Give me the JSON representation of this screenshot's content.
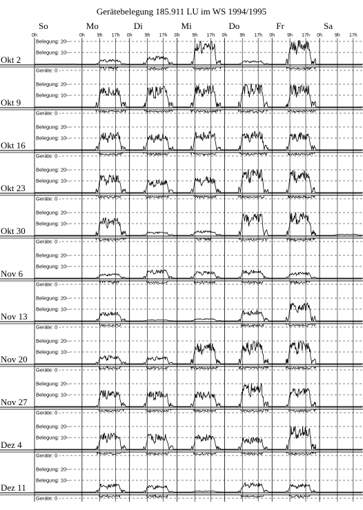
{
  "chart_data": {
    "type": "line",
    "title": "Gerätebelegung 185.911 LU im WS 1994/1995",
    "days": [
      "So",
      "Mo",
      "Di",
      "Mi",
      "Do",
      "Fr",
      "Sa"
    ],
    "hour_ticks": [
      "0h",
      "9h",
      "17h"
    ],
    "panel_labels": {
      "geraete": "Geräte: 0",
      "belegung_20": "Belegung: 20",
      "belegung_10": "Belegung: 10"
    },
    "weeks": [
      {
        "label": "Okt 2",
        "peaks": [
          0.5,
          4,
          7,
          20,
          3,
          21,
          0
        ]
      },
      {
        "label": "Okt 9",
        "peaks": [
          0,
          17,
          18,
          19,
          20,
          19,
          0
        ]
      },
      {
        "label": "Okt 16",
        "peaks": [
          0,
          15,
          14,
          16,
          16,
          15,
          0
        ]
      },
      {
        "label": "Okt 23",
        "peaks": [
          0,
          15,
          11,
          14,
          20,
          19,
          0
        ]
      },
      {
        "label": "Okt 30",
        "peaks": [
          0,
          15,
          3,
          4,
          19,
          20,
          1
        ]
      },
      {
        "label": "Nov 6",
        "peaks": [
          0,
          4,
          7,
          6,
          7,
          5,
          0
        ]
      },
      {
        "label": "Nov 13",
        "peaks": [
          0,
          8,
          1,
          2,
          9,
          16,
          0
        ]
      },
      {
        "label": "Nov 20",
        "peaks": [
          0,
          7,
          6,
          18,
          19,
          20,
          0
        ]
      },
      {
        "label": "Nov 27",
        "peaks": [
          0,
          14,
          13,
          13,
          20,
          16,
          0
        ]
      },
      {
        "label": "Dez 4",
        "peaks": [
          0,
          14,
          13,
          13,
          10,
          20,
          0
        ]
      },
      {
        "label": "Dez 11",
        "peaks": [
          0,
          7,
          6,
          1,
          8,
          7,
          0
        ]
      }
    ]
  }
}
